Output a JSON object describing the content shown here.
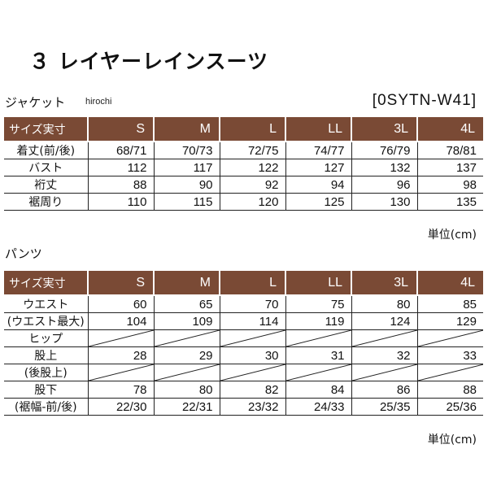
{
  "title": "３ レイヤーレインスーツ",
  "watermark": "hirochi",
  "model_number": "[0SYTN-W41]",
  "jacket": {
    "label": "ジャケット",
    "header_label": "サイズ実寸",
    "sizes": [
      "S",
      "M",
      "L",
      "LL",
      "3L",
      "4L"
    ],
    "rows": [
      {
        "label": "着丈(前/後)",
        "values": [
          "68/71",
          "70/73",
          "72/75",
          "74/77",
          "76/79",
          "78/81"
        ]
      },
      {
        "label": "バスト",
        "values": [
          "112",
          "117",
          "122",
          "127",
          "132",
          "137"
        ]
      },
      {
        "label": "裄丈",
        "values": [
          "88",
          "90",
          "92",
          "94",
          "96",
          "98"
        ]
      },
      {
        "label": "裾周り",
        "values": [
          "110",
          "115",
          "120",
          "125",
          "130",
          "135"
        ]
      }
    ],
    "unit": "単位(cm)"
  },
  "pants": {
    "label": "パンツ",
    "header_label": "サイズ実寸",
    "sizes": [
      "S",
      "M",
      "L",
      "LL",
      "3L",
      "4L"
    ],
    "rows": [
      {
        "label": "ウエスト",
        "values": [
          "60",
          "65",
          "70",
          "75",
          "80",
          "85"
        ]
      },
      {
        "label": "(ウエスト最大)",
        "values": [
          "104",
          "109",
          "114",
          "119",
          "124",
          "129"
        ]
      },
      {
        "label": "ヒップ",
        "values": [
          "",
          "",
          "",
          "",
          "",
          ""
        ]
      },
      {
        "label": "股上",
        "values": [
          "28",
          "29",
          "30",
          "31",
          "32",
          "33"
        ]
      },
      {
        "label": "(後股上)",
        "values": [
          "",
          "",
          "",
          "",
          "",
          ""
        ]
      },
      {
        "label": "股下",
        "values": [
          "78",
          "80",
          "82",
          "84",
          "86",
          "88"
        ]
      },
      {
        "label": "(裾幅-前/後)",
        "values": [
          "22/30",
          "22/31",
          "23/32",
          "24/33",
          "25/35",
          "25/36"
        ]
      }
    ],
    "unit": "単位(cm)"
  },
  "colors": {
    "header_bg": "#7a4a35",
    "header_text": "#ffffff"
  }
}
